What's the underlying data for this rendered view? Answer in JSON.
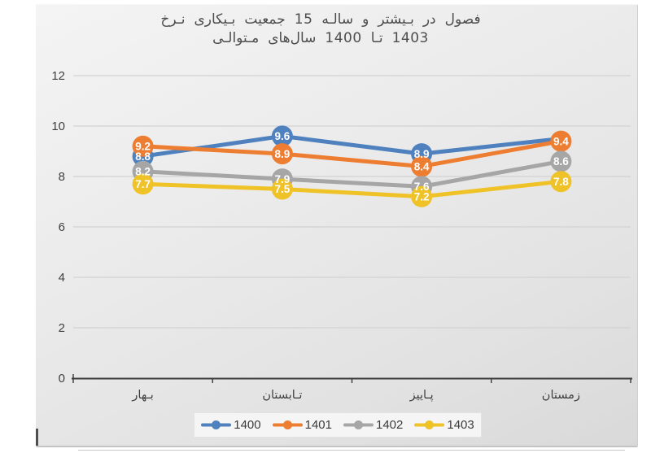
{
  "chart_data": {
    "type": "line",
    "title_lines": [
      "نـرخ بـیکاری جمعیت 15 سالـه و بـیشتر در فصول",
      "مـتوالـی سال‌های 1400 تـا 1403"
    ],
    "title_translation": "Unemployment rate of population aged 15+ in consecutive seasons of years 1400 to 1403",
    "categories": [
      "بـهار",
      "تـابستان",
      "پـاییز",
      "زمستان"
    ],
    "categories_translation": [
      "Spring",
      "Summer",
      "Autumn",
      "Winter"
    ],
    "series": [
      {
        "name": "1400",
        "color": "#4E81BD",
        "values": [
          8.8,
          9.6,
          8.9,
          9.5
        ],
        "labels": [
          "8.8",
          "9.6",
          "8.9",
          null
        ]
      },
      {
        "name": "1401",
        "color": "#ED7D31",
        "values": [
          9.2,
          8.9,
          8.4,
          9.4
        ],
        "labels": [
          "9.2",
          "8.9",
          "8.4",
          "9.4"
        ]
      },
      {
        "name": "1402",
        "color": "#A6A6A6",
        "values": [
          8.2,
          7.9,
          7.6,
          8.6
        ],
        "labels": [
          "8.2",
          "7.9",
          "7.6",
          "8.6"
        ]
      },
      {
        "name": "1403",
        "color": "#EFC228",
        "values": [
          7.7,
          7.5,
          7.2,
          7.8
        ],
        "labels": [
          "7.7",
          "7.5",
          "7.2",
          "7.8"
        ]
      }
    ],
    "y_ticks": [
      0,
      2,
      4,
      6,
      8,
      10,
      12
    ],
    "ylim": [
      0,
      12
    ],
    "grid": true,
    "legend_position": "bottom",
    "note": "series 1400 winter marker and data label are hidden behind the 1401 winter marker",
    "colors": {
      "title_text": "#4d4d4d",
      "axis_text": "#3f3f3f",
      "gridline": "#d2d2d2",
      "axis_line": "#3a3a3a",
      "data_label_text": "#ffffff",
      "legend_bg": "#f5f5f5",
      "panel_bg": "#e7e7e7",
      "page_bg": "#ffffff"
    }
  }
}
